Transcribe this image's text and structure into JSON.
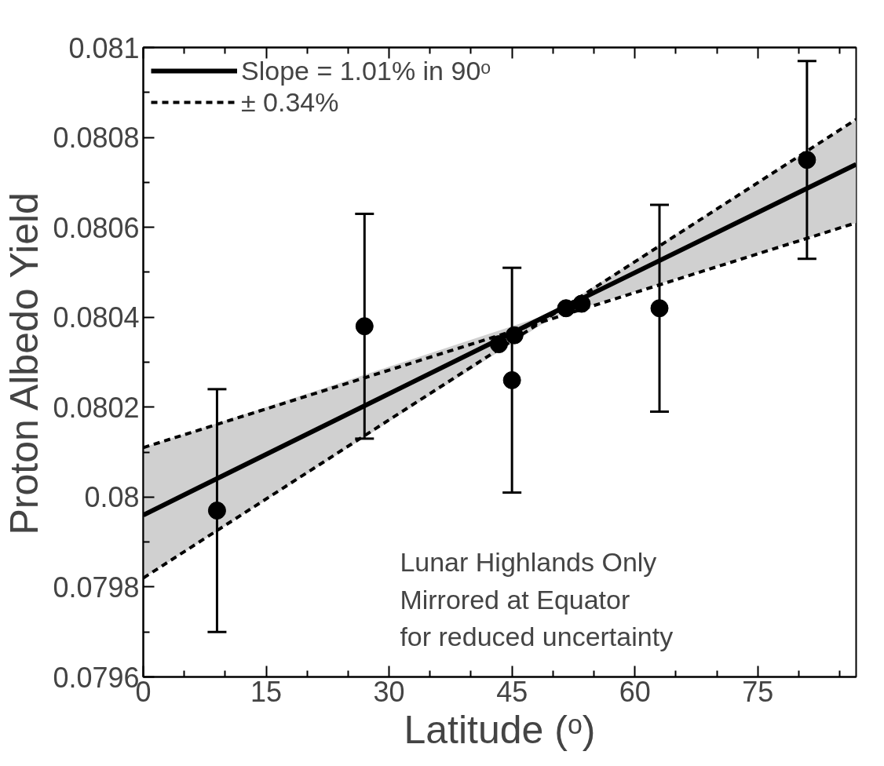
{
  "chart_data": {
    "type": "scatter",
    "xlabel": "Latitude (ᵒ)",
    "ylabel": "Proton Albedo Yield",
    "xlim": [
      0,
      87
    ],
    "xticks": [
      0,
      15,
      30,
      45,
      60,
      75
    ],
    "ylim": [
      0.0796,
      0.081
    ],
    "yticks": [
      0.0796,
      0.0798,
      0.08,
      0.0802,
      0.0804,
      0.0806,
      0.0808,
      0.081
    ],
    "grid": false,
    "legend": "top left",
    "annotations": [
      "Lunar Highlands Only\nMirrored at Equator\nfor reduced uncertainty"
    ],
    "series": [
      {
        "color": "#000000",
        "marker": "circle",
        "x": [
          9,
          27,
          43.4,
          45,
          45.3,
          51.6,
          53.5,
          63,
          81
        ],
        "values": [
          0.07997,
          0.08038,
          0.08034,
          0.08026,
          0.08036,
          0.08042,
          0.08043,
          0.08042,
          0.08075
        ],
        "errors": [
          0.00027,
          0.00025,
          null,
          0.00025,
          null,
          null,
          null,
          0.00023,
          0.00022
        ]
      },
      {
        "type": "line",
        "name": "Slope = 1.01% in 90ᵒ",
        "color": "#000000",
        "line_style": "solid",
        "marker": "none",
        "x": [
          0,
          50,
          87
        ],
        "values": [
          0.07996,
          0.08041,
          0.08074
        ],
        "lower": [
          0.07982,
          0.0804,
          0.08061
        ],
        "upper": [
          0.08011,
          0.08041,
          0.08084
        ]
      },
      {
        "type": "line",
        "name": "± 0.34%",
        "color": "#000000",
        "line_style": "dashed",
        "marker": "none",
        "x": [
          0,
          87
        ],
        "values": [
          0.08011,
          0.08061
        ]
      },
      {
        "type": "line",
        "color": "#000000",
        "line_style": "dashed",
        "marker": "none",
        "x": [
          0,
          87
        ],
        "values": [
          0.07982,
          0.08084
        ]
      }
    ]
  }
}
